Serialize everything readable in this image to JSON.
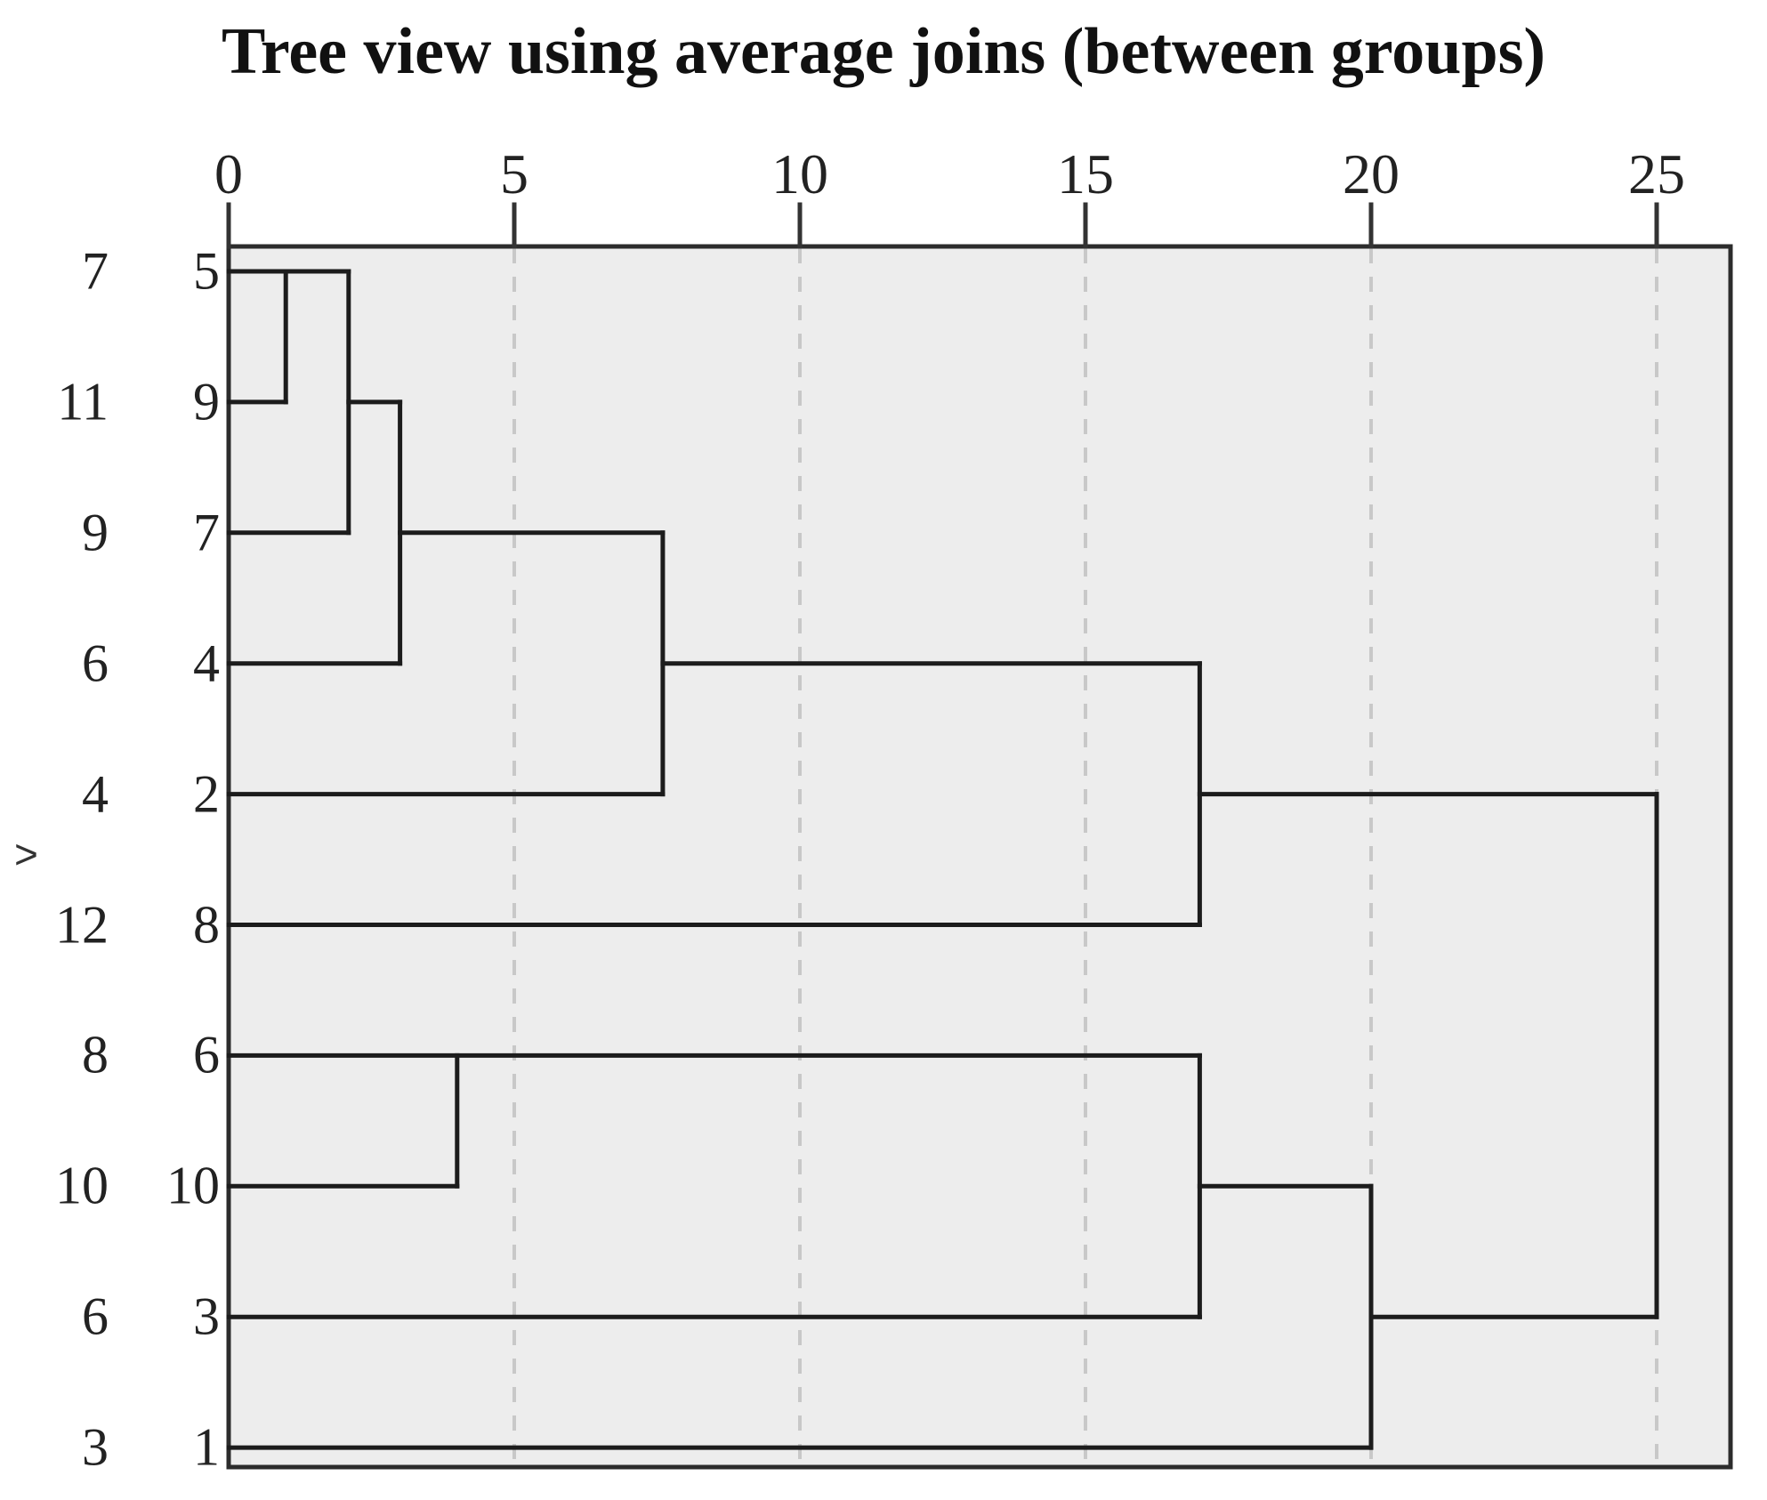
{
  "page": {
    "title": "Tree view using average joins (between groups)",
    "row_marker": ">"
  },
  "chart_data": {
    "type": "dendrogram",
    "title": "Tree view using average joins (between groups)",
    "orientation": "horizontal, leaves on left, distance axis on top",
    "x_axis": {
      "ticks": [
        0,
        5,
        10,
        15,
        20,
        25
      ],
      "min": 0,
      "max": 26.2,
      "gridlines": "dashed-vertical-at-ticks",
      "position": "top"
    },
    "leaf_rows": [
      {
        "outer_label": "7",
        "inner_label": "5"
      },
      {
        "outer_label": "11",
        "inner_label": "9"
      },
      {
        "outer_label": "9",
        "inner_label": "7"
      },
      {
        "outer_label": "6",
        "inner_label": "4"
      },
      {
        "outer_label": "4",
        "inner_label": "2"
      },
      {
        "outer_label": "12",
        "inner_label": "8"
      },
      {
        "outer_label": "8",
        "inner_label": "6"
      },
      {
        "outer_label": "10",
        "inner_label": "10"
      },
      {
        "outer_label": "6",
        "inner_label": "3"
      },
      {
        "outer_label": "3",
        "inner_label": "1"
      }
    ],
    "merges": [
      {
        "members": [
          "5",
          "9"
        ],
        "distance": 1.0
      },
      {
        "members": [
          "5+9",
          "7"
        ],
        "distance": 2.1
      },
      {
        "members": [
          "5+9+7",
          "4"
        ],
        "distance": 3.0
      },
      {
        "members": [
          "6",
          "10"
        ],
        "distance": 4.0
      },
      {
        "members": [
          "5+9+7+4",
          "2"
        ],
        "distance": 7.6
      },
      {
        "members": [
          "5+9+7+4+2",
          "8"
        ],
        "distance": 17.0
      },
      {
        "members": [
          "6+10",
          "3"
        ],
        "distance": 17.0
      },
      {
        "members": [
          "6+10+3",
          "1"
        ],
        "distance": 20.0
      },
      {
        "members": [
          "top-cluster",
          "bottom-cluster"
        ],
        "distance": 25.0
      }
    ],
    "segments": {
      "horizontal": [
        {
          "row": 0,
          "d1": 0,
          "d2": 2.1
        },
        {
          "row": 1,
          "d1": 0,
          "d2": 1.0
        },
        {
          "row": 1,
          "d1": 2.1,
          "d2": 3.0
        },
        {
          "row": 2,
          "d1": 0,
          "d2": 2.1
        },
        {
          "row": 2,
          "d1": 3.0,
          "d2": 7.6
        },
        {
          "row": 3,
          "d1": 0,
          "d2": 3.0
        },
        {
          "row": 3,
          "d1": 7.6,
          "d2": 17.0
        },
        {
          "row": 4,
          "d1": 0,
          "d2": 7.6
        },
        {
          "row": 4,
          "d1": 17.0,
          "d2": 25.0
        },
        {
          "row": 5,
          "d1": 0,
          "d2": 17.0
        },
        {
          "row": 6,
          "d1": 0,
          "d2": 17.0
        },
        {
          "row": 7,
          "d1": 0,
          "d2": 4.0
        },
        {
          "row": 7,
          "d1": 17.0,
          "d2": 20.0
        },
        {
          "row": 8,
          "d1": 0,
          "d2": 17.0
        },
        {
          "row": 8,
          "d1": 20.0,
          "d2": 25.0
        },
        {
          "row": 9,
          "d1": 0,
          "d2": 20.0
        }
      ],
      "vertical": [
        {
          "d": 1.0,
          "row1": 0,
          "row2": 1
        },
        {
          "d": 2.1,
          "row1": 0,
          "row2": 2
        },
        {
          "d": 3.0,
          "row1": 1,
          "row2": 3
        },
        {
          "d": 7.6,
          "row1": 2,
          "row2": 4
        },
        {
          "d": 17.0,
          "row1": 3,
          "row2": 5
        },
        {
          "d": 4.0,
          "row1": 6,
          "row2": 7
        },
        {
          "d": 17.0,
          "row1": 6,
          "row2": 8
        },
        {
          "d": 20.0,
          "row1": 7,
          "row2": 9
        },
        {
          "d": 25.0,
          "row1": 4,
          "row2": 8
        }
      ]
    },
    "colors": {
      "plot_bg": "#ededed",
      "line": "#1c1c1c",
      "grid": "#c8c8c8",
      "border": "#2c2c2c",
      "text": "#1f1f1f"
    }
  }
}
